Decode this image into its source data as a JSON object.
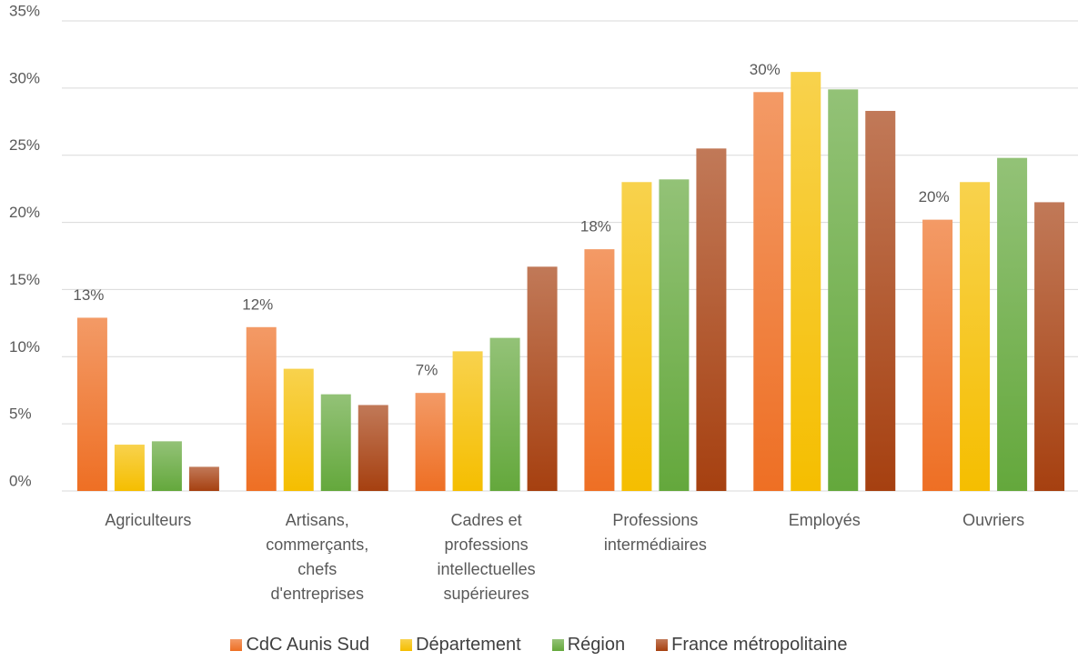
{
  "chart_data": {
    "type": "bar",
    "categories": [
      "Agriculteurs",
      "Artisans, commerçants, chefs d'entreprises",
      "Cadres et professions intellectuelles supérieures",
      "Professions intermédiaires",
      "Employés",
      "Ouvriers"
    ],
    "series": [
      {
        "name": "CdC Aunis Sud",
        "color": "#ee6f24",
        "values": [
          12.9,
          12.2,
          7.3,
          18.0,
          29.7,
          20.2
        ],
        "value_labels": [
          "13%",
          "12%",
          "7%",
          "18%",
          "30%",
          "20%"
        ]
      },
      {
        "name": "Département",
        "color": "#f5be00",
        "values": [
          3.45,
          9.1,
          10.4,
          23.0,
          31.2,
          23.0
        ]
      },
      {
        "name": "Région",
        "color": "#64a83c",
        "values": [
          3.7,
          7.2,
          11.4,
          23.2,
          29.9,
          24.8
        ]
      },
      {
        "name": "France métropolitaine",
        "color": "#a64010",
        "values": [
          1.8,
          6.4,
          16.7,
          25.5,
          28.3,
          21.5
        ]
      }
    ],
    "ylim": [
      0,
      35
    ],
    "yticks": [
      {
        "value": 0,
        "label": "0%"
      },
      {
        "value": 5,
        "label": "5%"
      },
      {
        "value": 10,
        "label": "10%"
      },
      {
        "value": 15,
        "label": "15%"
      },
      {
        "value": 20,
        "label": "20%"
      },
      {
        "value": 25,
        "label": "25%"
      },
      {
        "value": 30,
        "label": "30%"
      },
      {
        "value": 35,
        "label": "35%"
      }
    ],
    "grid": true,
    "legend": "bottom"
  }
}
